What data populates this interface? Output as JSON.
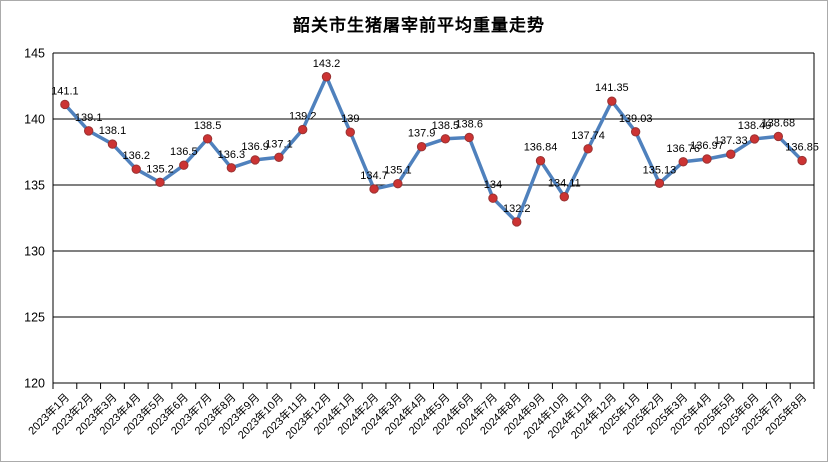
{
  "chart_data": {
    "type": "line",
    "title": "韶关市生猪屠宰前平均重量走势",
    "categories": [
      "2023年1月",
      "2023年2月",
      "2023年3月",
      "2023年4月",
      "2023年5月",
      "2023年6月",
      "2023年7月",
      "2023年8月",
      "2023年9月",
      "2023年10月",
      "2023年11月",
      "2023年12月",
      "2024年1月",
      "2024年2月",
      "2024年3月",
      "2024年4月",
      "2024年5月",
      "2024年6月",
      "2024年7月",
      "2024年8月",
      "2024年9月",
      "2024年10月",
      "2024年11月",
      "2024年12月",
      "2025年1月",
      "2025年2月",
      "2025年3月",
      "2025年4月",
      "2025年5月",
      "2025年6月",
      "2025年7月",
      "2025年8月"
    ],
    "values": [
      141.1,
      139.1,
      138.1,
      136.2,
      135.2,
      136.5,
      138.5,
      136.3,
      136.9,
      137.1,
      139.2,
      143.2,
      139,
      134.7,
      135.1,
      137.9,
      138.5,
      138.6,
      134,
      132.2,
      136.84,
      134.11,
      137.74,
      141.35,
      139.03,
      135.13,
      136.76,
      136.97,
      137.33,
      138.49,
      138.68,
      136.85
    ],
    "labels": [
      "141.1",
      "139.1",
      "138.1",
      "136.2",
      "135.2",
      "136.5",
      "138.5",
      "136.3",
      "136.9",
      "137.1",
      "139.2",
      "143.2",
      "139",
      "134.7",
      "135.1",
      "137.9",
      "138.5",
      "138.6",
      "134",
      "132.2",
      "136.84",
      "134.11",
      "137.74",
      "141.35",
      "139.03",
      "135.13",
      "136.76",
      "136.97",
      "137.33",
      "138.49",
      "138.68",
      "136.85"
    ],
    "xlabel": "",
    "ylabel": "",
    "ylim": [
      120,
      145
    ],
    "y_ticks": [
      120,
      125,
      130,
      135,
      140,
      145
    ],
    "grid": "horizontal",
    "legend": "none",
    "colors": {
      "line": "#4F81BD",
      "marker_fill": "#CC3333",
      "marker_stroke": "#993333",
      "grid": "#000000",
      "text": "#000000"
    }
  }
}
